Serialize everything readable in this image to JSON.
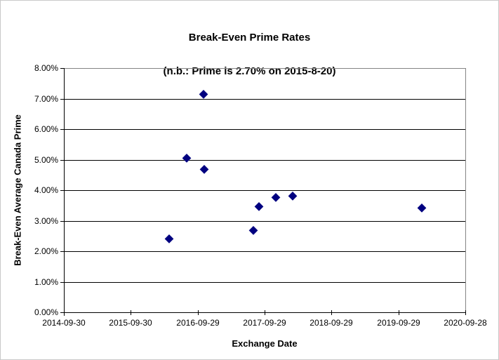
{
  "chart": {
    "title": "Break-Even Prime Rates",
    "subtitle": "(n.b.: Prime is 2.70% on 2015-8-20)",
    "xlabel": "Exchange Date",
    "ylabel": "Break-Even Average Canada Prime",
    "colors": {
      "marker": "#000080",
      "gridline": "#000000",
      "plot_border": "#848484",
      "axis": "#000000",
      "text": "#000000",
      "background": "#ffffff"
    }
  },
  "chart_data": {
    "type": "scatter",
    "title": "Break-Even Prime Rates (n.b.: Prime is 2.70% on 2015-8-20)",
    "xlabel": "Exchange Date",
    "ylabel": "Break-Even Average Canada Prime",
    "legend": "none",
    "grid": "horizontal",
    "marker": {
      "shape": "diamond",
      "color": "#000080"
    },
    "x_range": [
      "2014-09-30",
      "2020-09-28"
    ],
    "ylim": [
      0,
      8
    ],
    "x_ticks": [
      "2014-09-30",
      "2015-09-30",
      "2016-09-29",
      "2017-09-29",
      "2018-09-29",
      "2019-09-29",
      "2020-09-28"
    ],
    "y_ticks": [
      "0.00%",
      "1.00%",
      "2.00%",
      "3.00%",
      "4.00%",
      "5.00%",
      "6.00%",
      "7.00%",
      "8.00%"
    ],
    "points": [
      {
        "date": "2016-04-26",
        "value": 2.41
      },
      {
        "date": "2016-08-01",
        "value": 5.06
      },
      {
        "date": "2016-10-30",
        "value": 7.16
      },
      {
        "date": "2016-11-02",
        "value": 4.7
      },
      {
        "date": "2017-07-30",
        "value": 2.7
      },
      {
        "date": "2017-08-28",
        "value": 3.46
      },
      {
        "date": "2017-11-29",
        "value": 3.78
      },
      {
        "date": "2018-03-03",
        "value": 3.82
      },
      {
        "date": "2020-02-04",
        "value": 3.43
      }
    ]
  }
}
